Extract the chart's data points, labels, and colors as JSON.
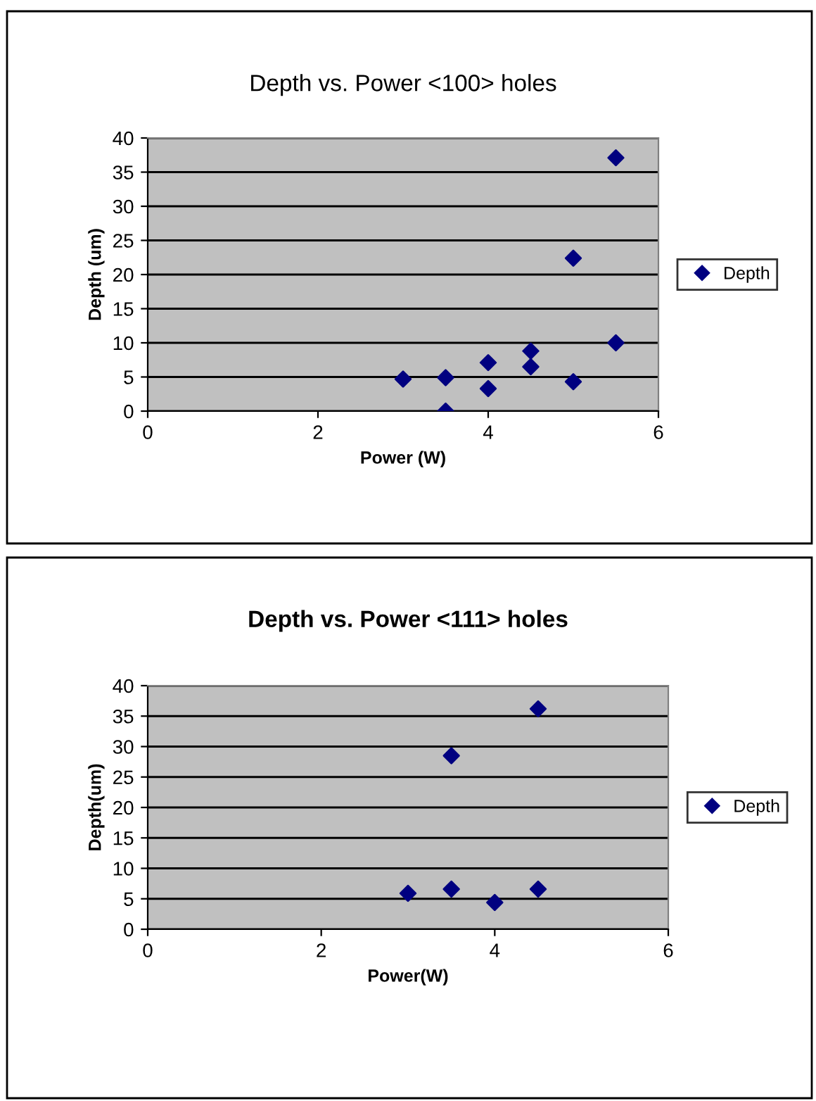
{
  "chart_data": [
    {
      "type": "scatter",
      "title": "Depth vs. Power <100> holes",
      "xlabel": "Power (W)",
      "ylabel": "Depth (um)",
      "xlim": [
        0,
        6
      ],
      "xticks": [
        0,
        2,
        4,
        6
      ],
      "ylim": [
        0,
        40
      ],
      "yticks": [
        0,
        5,
        10,
        15,
        20,
        25,
        30,
        35,
        40
      ],
      "grid": "y",
      "legend": "right",
      "marker": "diamond",
      "series": [
        {
          "name": "Depth",
          "color": "#000080",
          "x": [
            3,
            3.5,
            3.5,
            4,
            4,
            4.5,
            4.5,
            5,
            5,
            5.5,
            5.5
          ],
          "values": [
            4.7,
            4.9,
            0,
            7.1,
            3.3,
            8.8,
            6.5,
            22.4,
            4.3,
            37.1,
            10
          ]
        }
      ]
    },
    {
      "type": "scatter",
      "title": "Depth vs. Power <111> holes",
      "xlabel": "Power(W)",
      "ylabel": "Depth(um)",
      "xlim": [
        0,
        6
      ],
      "xticks": [
        0,
        2,
        4,
        6
      ],
      "ylim": [
        0,
        40
      ],
      "yticks": [
        0,
        5,
        10,
        15,
        20,
        25,
        30,
        35,
        40
      ],
      "grid": "y",
      "legend": "right",
      "marker": "diamond",
      "series": [
        {
          "name": "Depth",
          "color": "#000080",
          "x": [
            3,
            3.5,
            3.5,
            4,
            4.5,
            4.5
          ],
          "values": [
            5.9,
            6.6,
            28.5,
            4.4,
            36.2,
            6.6
          ]
        }
      ]
    }
  ]
}
